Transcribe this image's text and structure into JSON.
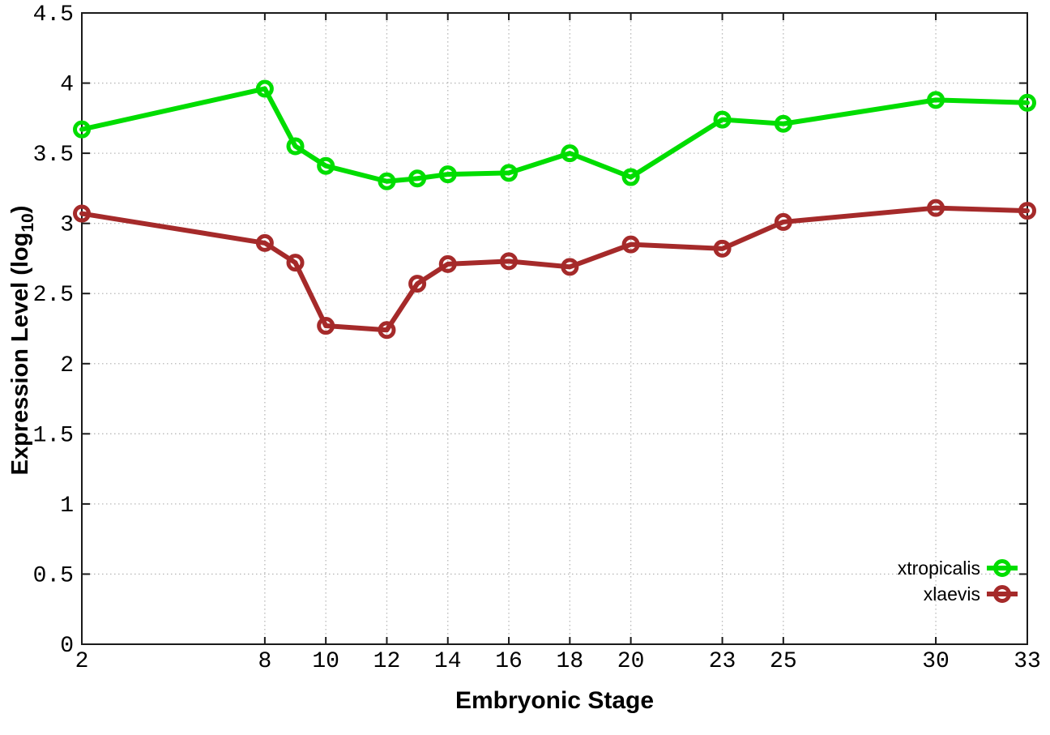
{
  "chart_data": {
    "type": "line",
    "title": "",
    "xlabel": "Embryonic Stage",
    "ylabel": "Expression Level (log10)",
    "ylabel_parts": {
      "base": "Expression Level (log",
      "sub": "10",
      "close": ")"
    },
    "x": [
      2,
      8,
      9,
      10,
      12,
      13,
      14,
      16,
      18,
      20,
      23,
      25,
      30,
      33
    ],
    "series": [
      {
        "name": "xtropicalis",
        "color": "#00dd00",
        "values": [
          3.67,
          3.96,
          3.55,
          3.41,
          3.3,
          3.32,
          3.35,
          3.36,
          3.5,
          3.33,
          3.74,
          3.71,
          3.88,
          3.86
        ]
      },
      {
        "name": "xlaevis",
        "color": "#a52a2a",
        "values": [
          3.07,
          2.86,
          2.72,
          2.27,
          2.24,
          2.57,
          2.71,
          2.73,
          2.69,
          2.85,
          2.82,
          3.01,
          3.11,
          3.09
        ]
      }
    ],
    "xlim": [
      2,
      33
    ],
    "ylim": [
      0,
      4.5
    ],
    "xticks": [
      2,
      8,
      10,
      12,
      14,
      16,
      18,
      20,
      23,
      25,
      30,
      33
    ],
    "xtick_labels": [
      "2",
      "8",
      "10",
      "12",
      "14",
      "16",
      "18",
      "20",
      "23",
      "25",
      "30",
      "33"
    ],
    "yticks": [
      0,
      0.5,
      1,
      1.5,
      2,
      2.5,
      3,
      3.5,
      4,
      4.5
    ],
    "ytick_labels": [
      "0",
      "0.5",
      "1",
      "1.5",
      "2",
      "2.5",
      "3",
      "3.5",
      "4",
      "4.5"
    ],
    "grid": true,
    "grid_style": "dotted",
    "legend_position": "bottom-right",
    "marker": "open-circle"
  },
  "colors": {
    "background": "#ffffff",
    "axis": "#1a1a1a",
    "grid": "#b8b8b8",
    "text": "#000000",
    "series_green": "#00dd00",
    "series_red": "#a52a2a"
  }
}
